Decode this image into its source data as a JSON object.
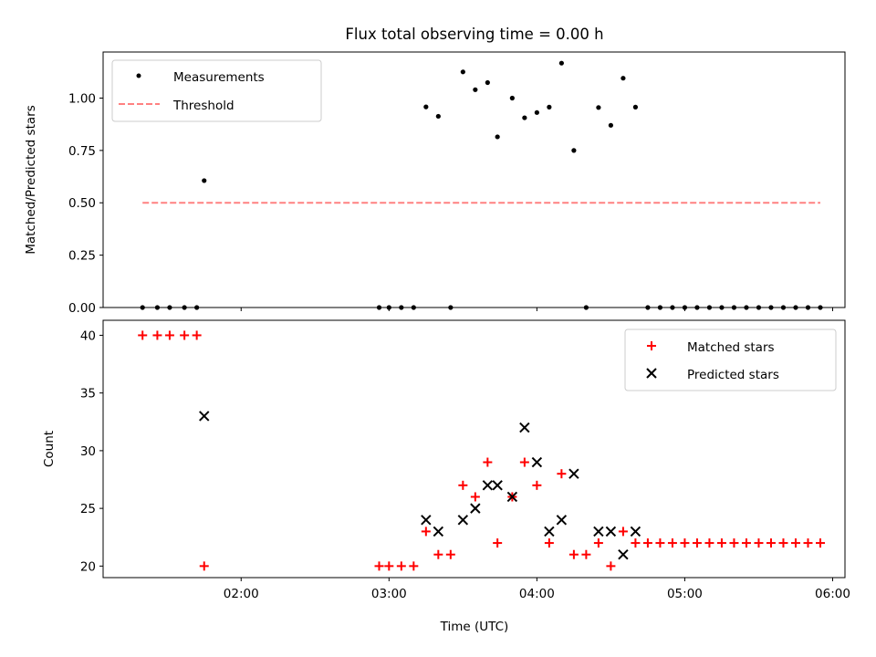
{
  "figure": {
    "title": "Flux total observing time = 0.00 h"
  },
  "chart_data": [
    {
      "type": "scatter",
      "ylabel": "Matched/Predicted stars",
      "ylim": [
        0,
        1.22
      ],
      "yticks": [
        "0.00",
        "0.25",
        "0.50",
        "0.75",
        "1.00"
      ],
      "legend_position": "top-left",
      "grid": false,
      "series": [
        {
          "name": "Measurements",
          "marker": "dot",
          "color": "#000000",
          "points": [
            [
              "01:20",
              0
            ],
            [
              "01:26",
              0
            ],
            [
              "01:31",
              0
            ],
            [
              "01:37",
              0
            ],
            [
              "01:42",
              0
            ],
            [
              "01:45",
              0.606
            ],
            [
              "02:56",
              0
            ],
            [
              "03:00",
              0
            ],
            [
              "03:05",
              0
            ],
            [
              "03:10",
              0
            ],
            [
              "03:15",
              0.958
            ],
            [
              "03:20",
              0.913
            ],
            [
              "03:25",
              0
            ],
            [
              "03:30",
              1.125
            ],
            [
              "03:35",
              1.04
            ],
            [
              "03:40",
              1.074
            ],
            [
              "03:44",
              0.815
            ],
            [
              "03:50",
              1.0
            ],
            [
              "03:55",
              0.906
            ],
            [
              "04:00",
              0.931
            ],
            [
              "04:05",
              0.957
            ],
            [
              "04:10",
              1.167
            ],
            [
              "04:15",
              0.75
            ],
            [
              "04:20",
              0
            ],
            [
              "04:25",
              0.955
            ],
            [
              "04:30",
              0.87
            ],
            [
              "04:35",
              1.095
            ],
            [
              "04:40",
              0.957
            ],
            [
              "04:45",
              0
            ],
            [
              "04:50",
              0
            ],
            [
              "04:55",
              0
            ],
            [
              "05:00",
              0
            ],
            [
              "05:05",
              0
            ],
            [
              "05:10",
              0
            ],
            [
              "05:15",
              0
            ],
            [
              "05:20",
              0
            ],
            [
              "05:25",
              0
            ],
            [
              "05:30",
              0
            ],
            [
              "05:35",
              0
            ],
            [
              "05:40",
              0
            ],
            [
              "05:45",
              0
            ],
            [
              "05:50",
              0
            ],
            [
              "05:55",
              0
            ]
          ]
        },
        {
          "name": "Threshold",
          "style": "dashed",
          "color": "#ff8080",
          "points": [
            [
              "01:20",
              0.5
            ],
            [
              "05:55",
              0.5
            ]
          ]
        }
      ]
    },
    {
      "type": "scatter",
      "xlabel": "Time (UTC)",
      "ylabel": "Count",
      "ylim": [
        19,
        41.3
      ],
      "yticks": [
        "20",
        "25",
        "30",
        "35",
        "40"
      ],
      "xlim": [
        "01:04",
        "06:05"
      ],
      "xticks": [
        "02:00",
        "03:00",
        "04:00",
        "05:00",
        "06:00"
      ],
      "legend_position": "top-right",
      "grid": false,
      "series": [
        {
          "name": "Matched stars",
          "marker": "plus",
          "color": "#ff0000",
          "points": [
            [
              "01:20",
              40
            ],
            [
              "01:26",
              40
            ],
            [
              "01:31",
              40
            ],
            [
              "01:37",
              40
            ],
            [
              "01:42",
              40
            ],
            [
              "01:45",
              20
            ],
            [
              "02:56",
              20
            ],
            [
              "03:00",
              20
            ],
            [
              "03:05",
              20
            ],
            [
              "03:10",
              20
            ],
            [
              "03:15",
              23
            ],
            [
              "03:20",
              21
            ],
            [
              "03:25",
              21
            ],
            [
              "03:30",
              27
            ],
            [
              "03:35",
              26
            ],
            [
              "03:40",
              29
            ],
            [
              "03:44",
              22
            ],
            [
              "03:50",
              26
            ],
            [
              "03:55",
              29
            ],
            [
              "04:00",
              27
            ],
            [
              "04:05",
              22
            ],
            [
              "04:10",
              28
            ],
            [
              "04:15",
              21
            ],
            [
              "04:20",
              21
            ],
            [
              "04:25",
              22
            ],
            [
              "04:30",
              20
            ],
            [
              "04:35",
              23
            ],
            [
              "04:40",
              22
            ],
            [
              "04:45",
              22
            ],
            [
              "04:50",
              22
            ],
            [
              "04:55",
              22
            ],
            [
              "05:00",
              22
            ],
            [
              "05:05",
              22
            ],
            [
              "05:10",
              22
            ],
            [
              "05:15",
              22
            ],
            [
              "05:20",
              22
            ],
            [
              "05:25",
              22
            ],
            [
              "05:30",
              22
            ],
            [
              "05:35",
              22
            ],
            [
              "05:40",
              22
            ],
            [
              "05:45",
              22
            ],
            [
              "05:50",
              22
            ],
            [
              "05:55",
              22
            ]
          ]
        },
        {
          "name": "Predicted stars",
          "marker": "x",
          "color": "#000000",
          "points": [
            [
              "01:45",
              33
            ],
            [
              "03:15",
              24
            ],
            [
              "03:20",
              23
            ],
            [
              "03:30",
              24
            ],
            [
              "03:35",
              25
            ],
            [
              "03:40",
              27
            ],
            [
              "03:44",
              27
            ],
            [
              "03:50",
              26
            ],
            [
              "03:55",
              32
            ],
            [
              "04:00",
              29
            ],
            [
              "04:05",
              23
            ],
            [
              "04:10",
              24
            ],
            [
              "04:15",
              28
            ],
            [
              "04:25",
              23
            ],
            [
              "04:30",
              23
            ],
            [
              "04:35",
              21
            ],
            [
              "04:40",
              23
            ]
          ]
        }
      ]
    }
  ]
}
